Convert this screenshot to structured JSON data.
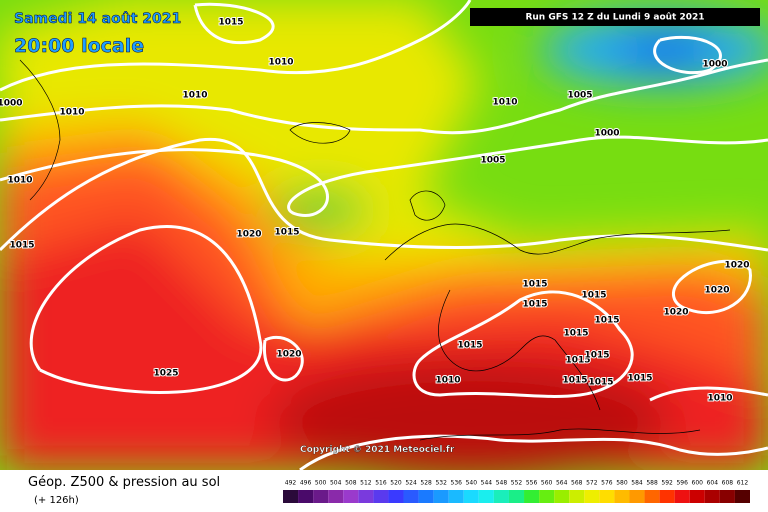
{
  "header": {
    "date": "Samedi 14 août 2021",
    "time": "20:00 locale",
    "run": "Run GFS 12 Z du Lundi 9 août 2021"
  },
  "copyright": "Copyright © 2021 Meteociel.fr",
  "footer": {
    "title": "Géop. Z500 & pression au sol",
    "subtitle": "(+ 126h)"
  },
  "isobar_labels": [
    "1015",
    "1010",
    "1010",
    "1000",
    "1010",
    "1010",
    "1015",
    "1020",
    "1015",
    "1010",
    "1005",
    "1000",
    "1000",
    "1005",
    "1020",
    "1020",
    "1020",
    "1015",
    "1015",
    "1015",
    "1015",
    "1015",
    "1015",
    "1015",
    "1015",
    "1015",
    "1015",
    "1015",
    "1010",
    "1020",
    "1025",
    "1010"
  ],
  "legend": {
    "labels": [
      492,
      496,
      500,
      504,
      508,
      512,
      516,
      520,
      524,
      528,
      532,
      536,
      540,
      544,
      548,
      552,
      556,
      560,
      564,
      568,
      572,
      576,
      580,
      584,
      588,
      592,
      596,
      600,
      604,
      608,
      612
    ]
  }
}
